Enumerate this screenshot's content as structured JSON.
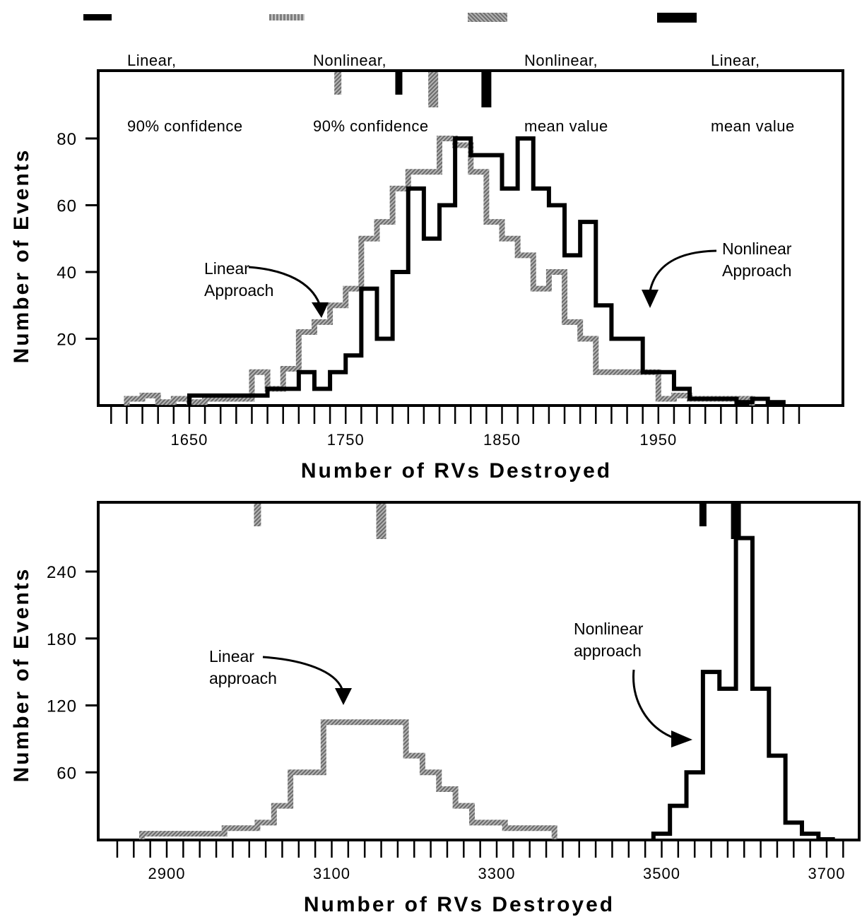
{
  "legend": [
    {
      "label_line1": "Linear,",
      "label_line2": "90% confidence",
      "color": "#000000",
      "style": "solid-thin"
    },
    {
      "label_line1": "Nonlinear,",
      "label_line2": "90% confidence",
      "color": "#7f7f7f",
      "style": "dotted-thin"
    },
    {
      "label_line1": "Nonlinear,",
      "label_line2": "mean value",
      "color": "#8a8a8a",
      "style": "hatched-thick"
    },
    {
      "label_line1": "Linear,",
      "label_line2": "mean value",
      "color": "#000000",
      "style": "solid-thick"
    }
  ],
  "colors": {
    "linear": "#000000",
    "nonlinear": "#888888"
  },
  "chart_data": [
    {
      "type": "line",
      "step": true,
      "xlabel": "Number of RVs Destroyed",
      "ylabel": "Number of Events",
      "xlim": [
        1590,
        2040
      ],
      "ylim": [
        0,
        100
      ],
      "xticks": [
        1650,
        1750,
        1850,
        1950
      ],
      "yticks": [
        20,
        40,
        60,
        80
      ],
      "minor_tick_step": 10,
      "series": [
        {
          "name": "Linear Approach",
          "color": "#888888",
          "style": "hatched",
          "x": [
            1610,
            1620,
            1630,
            1640,
            1650,
            1660,
            1670,
            1680,
            1690,
            1700,
            1710,
            1720,
            1730,
            1740,
            1750,
            1760,
            1770,
            1780,
            1790,
            1800,
            1810,
            1820,
            1830,
            1840,
            1850,
            1860,
            1870,
            1880,
            1890,
            1900,
            1910,
            1920,
            1930,
            1940,
            1950,
            1960,
            1970,
            1980,
            1990,
            2000
          ],
          "y": [
            2,
            3,
            1,
            2,
            1,
            2,
            2,
            2,
            10,
            5,
            11,
            22,
            25,
            30,
            35,
            50,
            55,
            65,
            70,
            70,
            80,
            78,
            70,
            55,
            50,
            45,
            35,
            40,
            25,
            20,
            10,
            10,
            10,
            10,
            2,
            3,
            2,
            2,
            2,
            2
          ]
        },
        {
          "name": "Nonlinear Approach",
          "color": "#000000",
          "style": "solid",
          "x": [
            1650,
            1660,
            1670,
            1680,
            1690,
            1700,
            1710,
            1720,
            1730,
            1740,
            1750,
            1760,
            1770,
            1780,
            1790,
            1800,
            1810,
            1820,
            1830,
            1840,
            1850,
            1860,
            1870,
            1880,
            1890,
            1900,
            1910,
            1920,
            1930,
            1940,
            1950,
            1960,
            1970,
            1980,
            1990,
            2000,
            2010,
            2020
          ],
          "y": [
            3,
            3,
            3,
            3,
            3,
            5,
            5,
            10,
            5,
            10,
            15,
            35,
            20,
            40,
            65,
            50,
            60,
            80,
            75,
            75,
            65,
            80,
            65,
            60,
            45,
            55,
            30,
            20,
            20,
            10,
            10,
            5,
            2,
            2,
            2,
            1,
            2,
            1
          ]
        }
      ],
      "markers": [
        {
          "name": "Nonlinear, 90% confidence",
          "x": 1745,
          "color": "#888888"
        },
        {
          "name": "Linear, 90% confidence",
          "x": 1784,
          "color": "#000000"
        },
        {
          "name": "Nonlinear, mean value",
          "x": 1806,
          "color": "#888888"
        },
        {
          "name": "Linear, mean value",
          "x": 1840,
          "color": "#000000"
        }
      ],
      "annotations": [
        {
          "line1": "Linear",
          "line2": "Approach"
        },
        {
          "line1": "Nonlinear",
          "line2": "Approach"
        }
      ]
    },
    {
      "type": "line",
      "step": true,
      "xlabel": "Number of RVs Destroyed",
      "ylabel": "Number of Events",
      "xlim": [
        2810,
        3720
      ],
      "ylim": [
        0,
        300
      ],
      "xticks": [
        2900,
        3100,
        3300,
        3500,
        3700
      ],
      "yticks": [
        60,
        120,
        180,
        240
      ],
      "minor_tick_step": 20,
      "series": [
        {
          "name": "Linear approach",
          "color": "#888888",
          "style": "hatched",
          "x": [
            2870,
            2890,
            2910,
            2930,
            2950,
            2970,
            2990,
            3010,
            3030,
            3050,
            3070,
            3090,
            3110,
            3130,
            3150,
            3170,
            3190,
            3210,
            3230,
            3250,
            3270,
            3290,
            3310,
            3330,
            3350
          ],
          "y": [
            5,
            5,
            5,
            5,
            5,
            10,
            10,
            15,
            30,
            60,
            60,
            105,
            105,
            105,
            105,
            105,
            75,
            60,
            45,
            30,
            15,
            15,
            10,
            10,
            10
          ]
        },
        {
          "name": "Nonlinear approach",
          "color": "#000000",
          "style": "solid",
          "x": [
            3490,
            3510,
            3530,
            3550,
            3570,
            3590,
            3610,
            3630,
            3650,
            3670,
            3690
          ],
          "y": [
            5,
            30,
            60,
            150,
            135,
            270,
            135,
            75,
            15,
            5,
            0
          ]
        }
      ],
      "markers": [
        {
          "name": "Nonlinear, 90% confidence",
          "x": 3010,
          "color": "#888888"
        },
        {
          "name": "Nonlinear, mean value",
          "x": 3160,
          "color": "#888888"
        },
        {
          "name": "Linear, 90% confidence",
          "x": 3550,
          "color": "#000000"
        },
        {
          "name": "Linear, mean value",
          "x": 3590,
          "color": "#000000"
        }
      ],
      "annotations": [
        {
          "line1": "Linear",
          "line2": "approach"
        },
        {
          "line1": "Nonlinear",
          "line2": "approach"
        }
      ]
    }
  ]
}
